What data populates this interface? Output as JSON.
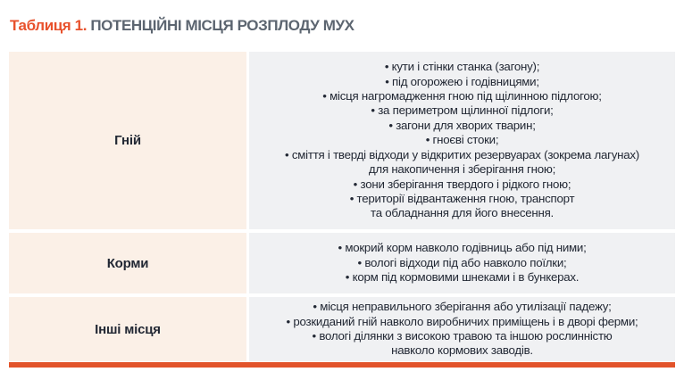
{
  "title": {
    "label": "Таблиця 1.",
    "text": "ПОТЕНЦІЙНІ МІСЦЯ РОЗПЛОДУ МУХ"
  },
  "table": {
    "bullet_char": "•",
    "rows": [
      {
        "category": "Гній",
        "lines": [
          {
            "b": true,
            "t": "кути і стінки станка (загону);"
          },
          {
            "b": true,
            "t": "під огорожею і годівницями;"
          },
          {
            "b": true,
            "t": "місця нагромадження гною під щілинною підлогою;"
          },
          {
            "b": true,
            "t": "за периметром щілинної підлоги;"
          },
          {
            "b": true,
            "t": "загони для хворих тварин;"
          },
          {
            "b": true,
            "t": "гноєві стоки;"
          },
          {
            "b": true,
            "t": "сміття і тверді відходи у відкритих резервуарах (зокрема лагунах)"
          },
          {
            "b": false,
            "t": "для накопичення і зберігання гною;"
          },
          {
            "b": true,
            "t": "зони зберігання твердого і рідкого гною;"
          },
          {
            "b": true,
            "t": "території відвантаження гною, транспорт"
          },
          {
            "b": false,
            "t": "та обладнання для його внесення."
          }
        ]
      },
      {
        "category": "Корми",
        "lines": [
          {
            "b": true,
            "t": "мокрий корм навколо годівниць або під ними;"
          },
          {
            "b": true,
            "t": "вологі відходи під або навколо поїлки;"
          },
          {
            "b": true,
            "t": "корм під кормовими шнеками і в бункерах."
          }
        ]
      },
      {
        "category": "Інші місця",
        "lines": [
          {
            "b": true,
            "t": "місця неправильного зберігання або утилізації падежу;"
          },
          {
            "b": true,
            "t": "розкиданий гній навколо виробничих приміщень і в дворі ферми;"
          },
          {
            "b": true,
            "t": "вологі ділянки з високою травою та іншою рослинністю"
          },
          {
            "b": false,
            "t": "навколо кормових заводів."
          }
        ]
      }
    ]
  },
  "colors": {
    "accent_orange": "#E8512C",
    "title_gray": "#5C6570",
    "category_cell_bg": "#FBF0E7",
    "details_cell_bg": "#F0F1F3",
    "body_text": "#222834",
    "bottom_rule": "#E2532A"
  }
}
